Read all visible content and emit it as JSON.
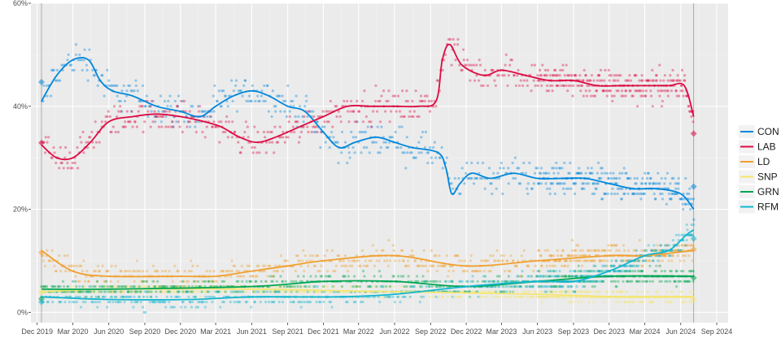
{
  "chart_data": {
    "type": "scatter",
    "title": "",
    "xlabel": "",
    "ylabel": "",
    "xlim": [
      "2019-11-15",
      "2024-09-30"
    ],
    "ylim": [
      -2,
      60
    ],
    "x_ticks": [
      "Dec 2019",
      "Mar 2020",
      "Jun 2020",
      "Sep 2020",
      "Dec 2020",
      "Mar 2021",
      "Jun 2021",
      "Sep 2021",
      "Dec 2021",
      "Mar 2022",
      "Jun 2022",
      "Sep 2022",
      "Dec 2022",
      "Mar 2023",
      "Jun 2023",
      "Sep 2023",
      "Dec 2023",
      "Mar 2024",
      "Jun 2024",
      "Sep 2024"
    ],
    "x_tick_dates": [
      "2019-12-01",
      "2020-03-01",
      "2020-06-01",
      "2020-09-01",
      "2020-12-01",
      "2021-03-01",
      "2021-06-01",
      "2021-09-01",
      "2021-12-01",
      "2022-03-01",
      "2022-06-01",
      "2022-09-01",
      "2022-12-01",
      "2023-03-01",
      "2023-06-01",
      "2023-09-01",
      "2023-12-01",
      "2024-03-01",
      "2024-06-01",
      "2024-09-01"
    ],
    "y_ticks": [
      0,
      20,
      40,
      60
    ],
    "y_tick_labels": [
      "0%",
      "20%",
      "40%",
      "60%"
    ],
    "vertical_lines": [
      "2019-12-12",
      "2024-07-04"
    ],
    "grid": true,
    "legend_position": "right",
    "series": [
      {
        "name": "CON",
        "color": "#0087DC",
        "trend": [
          [
            "2019-12-12",
            41
          ],
          [
            "2020-01-20",
            46
          ],
          [
            "2020-03-01",
            49
          ],
          [
            "2020-04-10",
            49
          ],
          [
            "2020-05-10",
            45
          ],
          [
            "2020-06-10",
            43
          ],
          [
            "2020-08-01",
            42
          ],
          [
            "2020-10-01",
            40
          ],
          [
            "2020-12-01",
            39
          ],
          [
            "2021-01-20",
            38
          ],
          [
            "2021-03-01",
            40
          ],
          [
            "2021-04-15",
            42
          ],
          [
            "2021-06-01",
            43
          ],
          [
            "2021-07-15",
            42
          ],
          [
            "2021-09-01",
            40
          ],
          [
            "2021-10-15",
            39
          ],
          [
            "2021-12-01",
            35
          ],
          [
            "2022-01-10",
            32
          ],
          [
            "2022-02-20",
            33
          ],
          [
            "2022-04-15",
            34
          ],
          [
            "2022-06-01",
            33
          ],
          [
            "2022-07-15",
            32
          ],
          [
            "2022-09-20",
            31
          ],
          [
            "2022-10-10",
            28
          ],
          [
            "2022-10-25",
            23
          ],
          [
            "2022-11-15",
            25
          ],
          [
            "2022-12-15",
            27
          ],
          [
            "2023-02-01",
            26
          ],
          [
            "2023-04-01",
            27
          ],
          [
            "2023-06-01",
            26
          ],
          [
            "2023-08-01",
            26
          ],
          [
            "2023-10-01",
            26
          ],
          [
            "2023-12-01",
            25
          ],
          [
            "2024-02-01",
            24
          ],
          [
            "2024-04-01",
            24
          ],
          [
            "2024-06-01",
            23
          ],
          [
            "2024-07-04",
            20
          ]
        ],
        "final_result": [
          "2024-07-04",
          24.4
        ],
        "previous_result": [
          "2019-12-12",
          44.7
        ]
      },
      {
        "name": "LAB",
        "color": "#DC0A43",
        "trend": [
          [
            "2019-12-12",
            32.5
          ],
          [
            "2020-01-20",
            30
          ],
          [
            "2020-03-01",
            30
          ],
          [
            "2020-04-15",
            33
          ],
          [
            "2020-06-01",
            37
          ],
          [
            "2020-08-01",
            38
          ],
          [
            "2020-10-01",
            38.5
          ],
          [
            "2020-12-01",
            38
          ],
          [
            "2021-02-01",
            37
          ],
          [
            "2021-03-15",
            36
          ],
          [
            "2021-05-01",
            34
          ],
          [
            "2021-06-15",
            33
          ],
          [
            "2021-08-01",
            34
          ],
          [
            "2021-10-01",
            36
          ],
          [
            "2021-12-01",
            38
          ],
          [
            "2022-02-01",
            40
          ],
          [
            "2022-04-01",
            40
          ],
          [
            "2022-06-01",
            40
          ],
          [
            "2022-08-01",
            40
          ],
          [
            "2022-09-15",
            41
          ],
          [
            "2022-10-01",
            49
          ],
          [
            "2022-10-20",
            52
          ],
          [
            "2022-11-20",
            48
          ],
          [
            "2023-01-15",
            46
          ],
          [
            "2023-03-01",
            47
          ],
          [
            "2023-05-01",
            46
          ],
          [
            "2023-07-01",
            45
          ],
          [
            "2023-09-01",
            45
          ],
          [
            "2023-11-01",
            44
          ],
          [
            "2024-01-01",
            44
          ],
          [
            "2024-03-01",
            44
          ],
          [
            "2024-05-01",
            44
          ],
          [
            "2024-06-10",
            44
          ],
          [
            "2024-07-04",
            38
          ]
        ],
        "final_result": [
          "2024-07-04",
          34.7
        ],
        "previous_result": [
          "2019-12-12",
          32.9
        ]
      },
      {
        "name": "LD",
        "color": "#F0A030",
        "trend": [
          [
            "2019-12-12",
            12
          ],
          [
            "2020-03-01",
            8
          ],
          [
            "2020-06-01",
            7
          ],
          [
            "2020-12-01",
            7
          ],
          [
            "2021-03-01",
            7
          ],
          [
            "2021-06-01",
            8
          ],
          [
            "2021-09-01",
            9
          ],
          [
            "2021-12-01",
            10
          ],
          [
            "2022-06-01",
            11
          ],
          [
            "2022-12-01",
            9
          ],
          [
            "2023-06-01",
            10
          ],
          [
            "2023-12-01",
            11
          ],
          [
            "2024-03-01",
            11
          ],
          [
            "2024-07-04",
            12
          ]
        ],
        "final_result": [
          "2024-07-04",
          12.2
        ],
        "previous_result": [
          "2019-12-12",
          11.6
        ]
      },
      {
        "name": "SNP",
        "color": "#F5E66E",
        "trend": [
          [
            "2019-12-12",
            4
          ],
          [
            "2020-06-01",
            4.5
          ],
          [
            "2021-06-01",
            4.5
          ],
          [
            "2022-06-01",
            4
          ],
          [
            "2023-06-01",
            3.5
          ],
          [
            "2024-01-01",
            3
          ],
          [
            "2024-07-04",
            3
          ]
        ],
        "final_result": [
          "2024-07-04",
          2.5
        ],
        "previous_result": [
          "2019-12-12",
          3.9
        ]
      },
      {
        "name": "GRN",
        "color": "#00A651",
        "trend": [
          [
            "2019-12-12",
            4.5
          ],
          [
            "2020-06-01",
            4.5
          ],
          [
            "2021-06-01",
            5
          ],
          [
            "2021-12-01",
            6
          ],
          [
            "2022-06-01",
            6
          ],
          [
            "2022-12-01",
            5
          ],
          [
            "2023-06-01",
            6
          ],
          [
            "2023-12-01",
            7
          ],
          [
            "2024-07-04",
            7
          ]
        ],
        "final_result": [
          "2024-07-04",
          6.7
        ],
        "previous_result": [
          "2019-12-12",
          2.6
        ]
      },
      {
        "name": "RFM",
        "color": "#12B6CF",
        "trend": [
          [
            "2019-12-12",
            3
          ],
          [
            "2020-06-01",
            2.5
          ],
          [
            "2021-01-01",
            2.5
          ],
          [
            "2021-06-01",
            3
          ],
          [
            "2022-01-01",
            3
          ],
          [
            "2022-06-01",
            3.5
          ],
          [
            "2022-12-01",
            5
          ],
          [
            "2023-06-01",
            6
          ],
          [
            "2023-09-01",
            6
          ],
          [
            "2023-12-01",
            8
          ],
          [
            "2024-03-01",
            11
          ],
          [
            "2024-05-01",
            12
          ],
          [
            "2024-06-15",
            15
          ],
          [
            "2024-07-04",
            16
          ]
        ],
        "final_result": [
          "2024-07-04",
          14.3
        ],
        "previous_result": [
          "2019-12-12",
          2.0
        ]
      }
    ]
  }
}
